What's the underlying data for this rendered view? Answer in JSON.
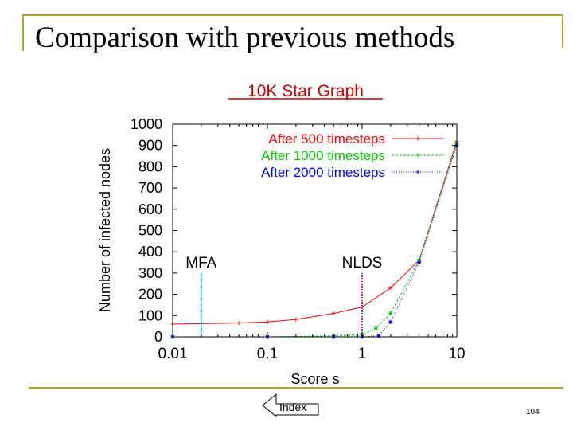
{
  "slide": {
    "title": "Comparison with previous methods",
    "page_number": "104",
    "index_label": "Index"
  },
  "chart_data": {
    "type": "line",
    "title": "10K Star Graph",
    "xlabel": "Score s",
    "ylabel": "Number of infected nodes",
    "xscale": "log",
    "xlim": [
      0.01,
      10
    ],
    "ylim": [
      0,
      1000
    ],
    "x_ticks": [
      "0.01",
      "0.1",
      "1",
      "10"
    ],
    "y_ticks": [
      "0",
      "100",
      "200",
      "300",
      "400",
      "500",
      "600",
      "700",
      "800",
      "900",
      "1000"
    ],
    "legend_position": "top-right",
    "grid": false,
    "colors": {
      "title": "#cc0000",
      "frame": "#b3a23a",
      "mfa": "#00cccc",
      "nlds": "#aa00aa"
    },
    "series": [
      {
        "name": "After 500 timesteps",
        "color": "#ff0000",
        "x": [
          0.01,
          0.05,
          0.1,
          0.2,
          0.5,
          1,
          2,
          4,
          10
        ],
        "y": [
          60,
          65,
          70,
          82,
          110,
          140,
          230,
          360,
          920
        ]
      },
      {
        "name": "After 1000 timesteps",
        "color": "#00cc00",
        "x": [
          0.01,
          0.1,
          0.5,
          1,
          1.4,
          2,
          4,
          10
        ],
        "y": [
          0,
          0,
          5,
          10,
          40,
          110,
          360,
          910
        ]
      },
      {
        "name": "After 2000 timesteps",
        "color": "#0000ff",
        "x": [
          0.01,
          0.1,
          0.5,
          1,
          1.5,
          2,
          4,
          10
        ],
        "y": [
          0,
          0,
          0,
          0,
          5,
          70,
          350,
          900
        ]
      }
    ],
    "annotations": [
      {
        "label": "MFA",
        "x": 0.02,
        "color": "#00cccc"
      },
      {
        "label": "NLDS",
        "x": 1,
        "color": "#aa00aa"
      }
    ]
  }
}
